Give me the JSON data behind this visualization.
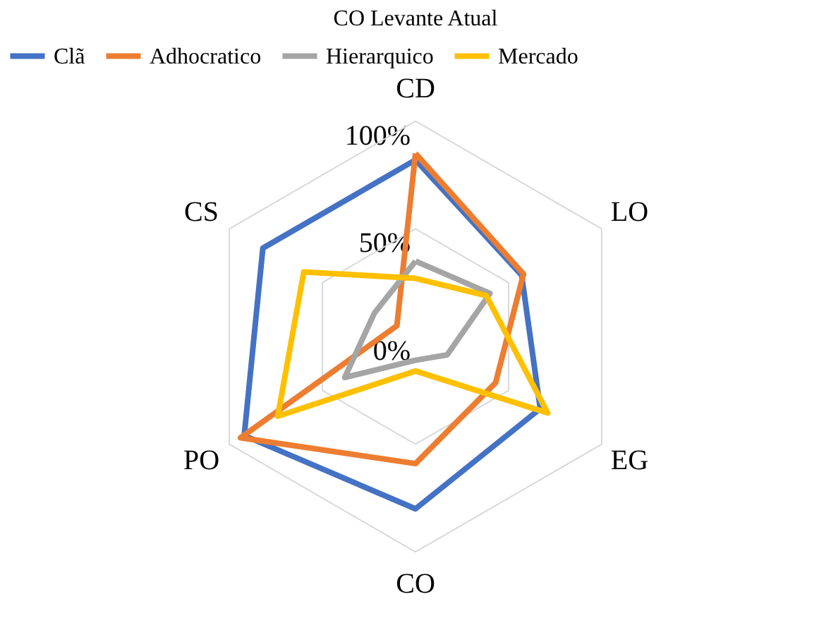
{
  "chart_data": {
    "type": "radar",
    "title": "CO Levante Atual",
    "categories": [
      "CD",
      "LO",
      "EG",
      "CO",
      "PO",
      "CS"
    ],
    "series": [
      {
        "name": "Clã",
        "color": "#4472c4",
        "values": [
          0.82,
          0.57,
          0.67,
          0.8,
          0.92,
          0.82
        ]
      },
      {
        "name": "Adhocratico",
        "color": "#ed7d31",
        "values": [
          0.85,
          0.58,
          0.43,
          0.59,
          0.94,
          0.1
        ]
      },
      {
        "name": "Hierarquico",
        "color": "#a5a5a5",
        "values": [
          0.35,
          0.4,
          0.17,
          0.11,
          0.38,
          0.22
        ]
      },
      {
        "name": "Mercado",
        "color": "#ffc000",
        "values": [
          0.27,
          0.38,
          0.71,
          0.16,
          0.74,
          0.6
        ]
      }
    ],
    "ylim": [
      0,
      1
    ],
    "yticks": [
      {
        "value": 0,
        "label": "0%"
      },
      {
        "value": 0.5,
        "label": "50%"
      },
      {
        "value": 1,
        "label": "100%"
      }
    ],
    "legend": "top",
    "grid": true
  }
}
